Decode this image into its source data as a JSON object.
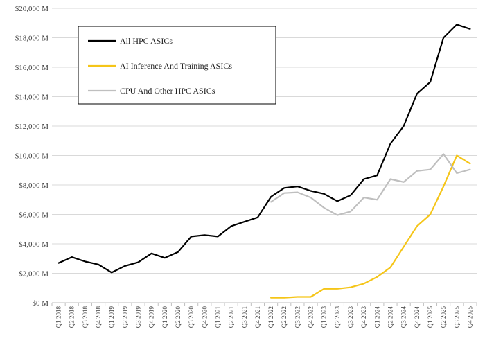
{
  "chart_data": {
    "type": "line",
    "title": "",
    "xlabel": "",
    "ylabel": "",
    "ylim": [
      0,
      20000
    ],
    "y_ticks": [
      0,
      2000,
      4000,
      6000,
      8000,
      10000,
      12000,
      14000,
      16000,
      18000,
      20000
    ],
    "y_tick_labels": [
      "$0 M",
      "$2,000 M",
      "$4,000 M",
      "$6,000 M",
      "$8,000 M",
      "$10,000 M",
      "$12,000 M",
      "$14,000 M",
      "$16,000 M",
      "$18,000 M",
      "$20,000 M"
    ],
    "grid": "horizontal",
    "legend_placement": "top-left",
    "categories": [
      "Q1 2018",
      "Q2 2018",
      "Q3 2018",
      "Q4 2018",
      "Q1 2019",
      "Q2 2019",
      "Q3 2019",
      "Q4 2019",
      "Q1 2020",
      "Q2 2020",
      "Q3 2020",
      "Q4 2020",
      "Q1 2021",
      "Q2 2021",
      "Q3 2021",
      "Q4 2021",
      "Q1 2022",
      "Q2 2022",
      "Q3 2022",
      "Q4 2022",
      "Q1 2023",
      "Q2 2023",
      "Q3 2023",
      "Q4 2023",
      "Q1 2024",
      "Q2 2024",
      "Q3 2024",
      "Q4 2024",
      "Q1 2025",
      "Q2 2025",
      "Q3 2025",
      "Q4 2025"
    ],
    "series": [
      {
        "name": "All HPC ASICs",
        "color": "#000000",
        "values": [
          2700,
          3100,
          2800,
          2600,
          2050,
          2500,
          2750,
          3350,
          3050,
          3450,
          4500,
          4600,
          4500,
          5200,
          5500,
          5800,
          7200,
          7800,
          7900,
          7600,
          7400,
          6900,
          7300,
          8400,
          8650,
          10800,
          12000,
          14200,
          15000,
          18000,
          18900,
          18600
        ]
      },
      {
        "name": "AI Inference And Training ASICs",
        "color": "#f5c518",
        "values": [
          null,
          null,
          null,
          null,
          null,
          null,
          null,
          null,
          null,
          null,
          null,
          null,
          null,
          null,
          null,
          null,
          350,
          350,
          400,
          400,
          950,
          950,
          1050,
          1300,
          1750,
          2400,
          3800,
          5200,
          6000,
          7900,
          10000,
          9450
        ]
      },
      {
        "name": "CPU And Other HPC ASICs",
        "color": "#bfbfbf",
        "values": [
          null,
          null,
          null,
          null,
          null,
          null,
          null,
          null,
          null,
          null,
          null,
          null,
          null,
          null,
          null,
          null,
          6850,
          7450,
          7500,
          7150,
          6450,
          5950,
          6200,
          7150,
          7000,
          8400,
          8200,
          8950,
          9050,
          10100,
          8800,
          9050
        ]
      }
    ]
  }
}
